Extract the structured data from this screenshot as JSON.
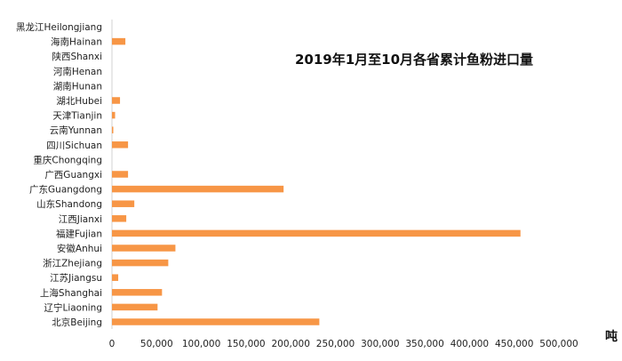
{
  "chart_data": {
    "type": "bar",
    "orientation": "horizontal",
    "title": "2019年1月至10月各省累计鱼粉进口量",
    "unit_label": "吨",
    "categories": [
      "黑龙江Heilongjiang",
      "海南Hainan",
      "陕西Shanxi",
      "河南Henan",
      "湖南Hunan",
      "湖北Hubei",
      "天津Tianjin",
      "云南Yunnan",
      "四川Sichuan",
      "重庆Chongqing",
      "广西Guangxi",
      "广东Guangdong",
      "山东Shandong",
      "江西Jianxi",
      "福建Fujian",
      "安徽Anhui",
      "浙江Zhejiang",
      "江苏Jiangsu",
      "上海Shanghai",
      "辽宁Liaoning",
      "北京Beijing"
    ],
    "values": [
      0,
      15000,
      0,
      0,
      0,
      9000,
      3500,
      1500,
      18000,
      0,
      18000,
      192000,
      25000,
      16000,
      457000,
      71000,
      63000,
      7000,
      56000,
      51000,
      232000
    ],
    "xlim": [
      0,
      500000
    ],
    "xticks": [
      0,
      50000,
      100000,
      150000,
      200000,
      250000,
      300000,
      350000,
      400000,
      450000,
      500000
    ],
    "xtick_labels": [
      "0",
      "50,000",
      "100,000",
      "150,000",
      "200,000",
      "250,000",
      "300,000",
      "350,000",
      "400,000",
      "450,000",
      "500,000"
    ],
    "grid": false,
    "legend": "none",
    "bar_color": "#F79646"
  }
}
